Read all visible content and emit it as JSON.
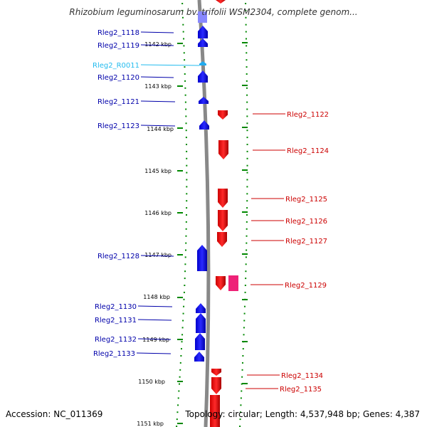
{
  "title": "Rhizobium leguminosarum bv. trifolii WSM2304, complete genom...",
  "footer": {
    "accession": "Accession: NC_011369",
    "summary": "Topology: circular; Length: 4,537,948 bp; Genes: 4,387"
  },
  "colors": {
    "reverse_gene": "#0000ee",
    "forward_gene": "#ee0000",
    "rna": "#22aaee",
    "other_feature": "#ee2277",
    "backbone": "#888888",
    "tick_dots": "#008800",
    "forward_label": "#cc0000",
    "reverse_label": "#0000aa",
    "rna_label": "#22bbee"
  },
  "scale_labels": [
    "1142 kbp",
    "1143 kbp",
    "1144 kbp",
    "1145 kbp",
    "1146 kbp",
    "1147 kbp",
    "1148 kbp",
    "1149 kbp",
    "1150 kbp",
    "1151 kbp"
  ],
  "reverse_genes": [
    {
      "label": "Rleg2_1118",
      "kind": "gene"
    },
    {
      "label": "Rleg2_1119",
      "kind": "gene"
    },
    {
      "label": "Rleg2_R0011",
      "kind": "rna"
    },
    {
      "label": "Rleg2_1120",
      "kind": "gene"
    },
    {
      "label": "Rleg2_1121",
      "kind": "gene"
    },
    {
      "label": "Rleg2_1123",
      "kind": "gene"
    },
    {
      "label": "Rleg2_1128",
      "kind": "gene"
    },
    {
      "label": "Rleg2_1130",
      "kind": "gene"
    },
    {
      "label": "Rleg2_1131",
      "kind": "gene"
    },
    {
      "label": "Rleg2_1132",
      "kind": "gene"
    },
    {
      "label": "Rleg2_1133",
      "kind": "gene"
    }
  ],
  "forward_genes": [
    {
      "label": "Rleg2_1122"
    },
    {
      "label": "Rleg2_1124"
    },
    {
      "label": "Rleg2_1125"
    },
    {
      "label": "Rleg2_1126"
    },
    {
      "label": "Rleg2_1127"
    },
    {
      "label": "Rleg2_1129"
    },
    {
      "label": "Rleg2_1134"
    },
    {
      "label": "Rleg2_1135"
    }
  ]
}
